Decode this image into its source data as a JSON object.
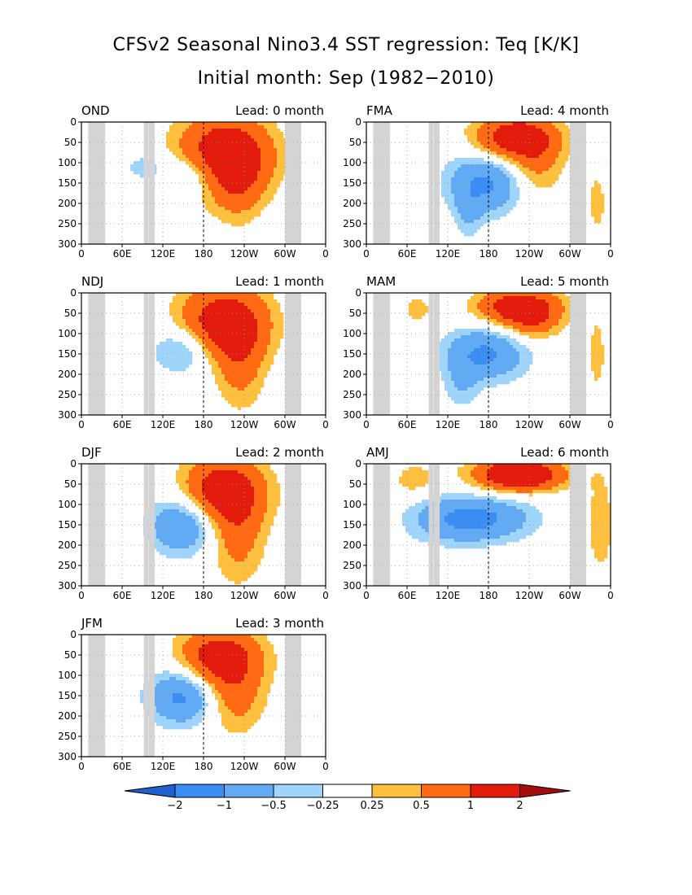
{
  "title": "CFSv2 Seasonal Nino3.4 SST regression: Teq [K/K]",
  "subtitle": "Initial month: Sep (1982−2010)",
  "chart_data": [
    {
      "type": "heatmap",
      "season": "OND",
      "lead": "Lead: 0 month",
      "x_ticks": [
        "0",
        "60E",
        "120E",
        "180",
        "120W",
        "60W",
        "0"
      ],
      "y_ticks": [
        "0",
        "50",
        "100",
        "150",
        "200",
        "250",
        "300"
      ],
      "ylim": [
        300,
        0
      ],
      "blobs": [
        {
          "lon": 210,
          "dep": 80,
          "rl": 70,
          "rd": 95,
          "v": 1.5
        },
        {
          "lon": 230,
          "dep": 150,
          "rl": 40,
          "rd": 100,
          "v": 0.6
        },
        {
          "lon": 160,
          "dep": 130,
          "rl": 50,
          "rd": 55,
          "v": -0.65
        },
        {
          "lon": 90,
          "dep": 110,
          "rl": 25,
          "rd": 30,
          "v": -0.4
        }
      ]
    },
    {
      "type": "heatmap",
      "season": "NDJ",
      "lead": "Lead: 1 month",
      "x_ticks": [
        "0",
        "60E",
        "120E",
        "180",
        "120W",
        "60W",
        "0"
      ],
      "y_ticks": [
        "0",
        "50",
        "100",
        "150",
        "200",
        "250",
        "300"
      ],
      "ylim": [
        300,
        0
      ],
      "blobs": [
        {
          "lon": 210,
          "dep": 75,
          "rl": 65,
          "rd": 90,
          "v": 1.5
        },
        {
          "lon": 235,
          "dep": 180,
          "rl": 35,
          "rd": 110,
          "v": 0.6
        },
        {
          "lon": 150,
          "dep": 140,
          "rl": 45,
          "rd": 60,
          "v": -0.75
        }
      ]
    },
    {
      "type": "heatmap",
      "season": "DJF",
      "lead": "Lead: 2 month",
      "x_ticks": [
        "0",
        "60E",
        "120E",
        "180",
        "120W",
        "60W",
        "0"
      ],
      "y_ticks": [
        "0",
        "50",
        "100",
        "150",
        "200",
        "250",
        "300"
      ],
      "ylim": [
        300,
        0
      ],
      "blobs": [
        {
          "lon": 210,
          "dep": 70,
          "rl": 60,
          "rd": 85,
          "v": 1.5
        },
        {
          "lon": 230,
          "dep": 190,
          "rl": 40,
          "rd": 110,
          "v": 0.6
        },
        {
          "lon": 150,
          "dep": 150,
          "rl": 50,
          "rd": 70,
          "v": -1.1
        }
      ]
    },
    {
      "type": "heatmap",
      "season": "JFM",
      "lead": "Lead: 3 month",
      "x_ticks": [
        "0",
        "60E",
        "120E",
        "180",
        "120W",
        "60W",
        "0"
      ],
      "y_ticks": [
        "0",
        "50",
        "100",
        "150",
        "200",
        "250",
        "300"
      ],
      "ylim": [
        300,
        0
      ],
      "blobs": [
        {
          "lon": 205,
          "dep": 60,
          "rl": 60,
          "rd": 75,
          "v": 1.5
        },
        {
          "lon": 225,
          "dep": 170,
          "rl": 45,
          "rd": 80,
          "v": 0.6
        },
        {
          "lon": 150,
          "dep": 150,
          "rl": 50,
          "rd": 70,
          "v": -1.2
        }
      ]
    },
    {
      "type": "heatmap",
      "season": "FMA",
      "lead": "Lead: 4 month",
      "x_ticks": [
        "0",
        "60E",
        "120E",
        "180",
        "120W",
        "60W",
        "0"
      ],
      "y_ticks": [
        "0",
        "50",
        "100",
        "150",
        "200",
        "250",
        "300"
      ],
      "ylim": [
        300,
        0
      ],
      "blobs": [
        {
          "lon": 220,
          "dep": 40,
          "rl": 60,
          "rd": 55,
          "v": 1.5
        },
        {
          "lon": 250,
          "dep": 110,
          "rl": 40,
          "rd": 80,
          "v": 0.55
        },
        {
          "lon": 175,
          "dep": 150,
          "rl": 55,
          "rd": 75,
          "v": -1.1
        },
        {
          "lon": 150,
          "dep": 230,
          "rl": 20,
          "rd": 60,
          "v": -0.4
        },
        {
          "lon": 340,
          "dep": 200,
          "rl": 15,
          "rd": 90,
          "v": 0.35
        }
      ]
    },
    {
      "type": "heatmap",
      "season": "MAM",
      "lead": "Lead: 5 month",
      "x_ticks": [
        "0",
        "60E",
        "120E",
        "180",
        "120W",
        "60W",
        "0"
      ],
      "y_ticks": [
        "0",
        "50",
        "100",
        "150",
        "200",
        "250",
        "300"
      ],
      "ylim": [
        300,
        0
      ],
      "blobs": [
        {
          "lon": 225,
          "dep": 35,
          "rl": 60,
          "rd": 45,
          "v": 1.5
        },
        {
          "lon": 245,
          "dep": 80,
          "rl": 40,
          "rd": 45,
          "v": 0.55
        },
        {
          "lon": 175,
          "dep": 150,
          "rl": 60,
          "rd": 65,
          "v": -1.1
        },
        {
          "lon": 140,
          "dep": 230,
          "rl": 25,
          "rd": 60,
          "v": -0.4
        },
        {
          "lon": 75,
          "dep": 40,
          "rl": 25,
          "rd": 40,
          "v": 0.35
        },
        {
          "lon": 340,
          "dep": 150,
          "rl": 15,
          "rd": 110,
          "v": 0.35
        }
      ]
    },
    {
      "type": "heatmap",
      "season": "AMJ",
      "lead": "Lead: 6 month",
      "x_ticks": [
        "0",
        "60E",
        "120E",
        "180",
        "120W",
        "60W",
        "0"
      ],
      "y_ticks": [
        "0",
        "50",
        "100",
        "150",
        "200",
        "250",
        "300"
      ],
      "ylim": [
        300,
        0
      ],
      "blobs": [
        {
          "lon": 225,
          "dep": 25,
          "rl": 55,
          "rd": 40,
          "v": 1.5
        },
        {
          "lon": 225,
          "dep": 30,
          "rl": 95,
          "rd": 40,
          "v": 0.45
        },
        {
          "lon": 170,
          "dep": 135,
          "rl": 75,
          "rd": 55,
          "v": -1.05
        },
        {
          "lon": 110,
          "dep": 140,
          "rl": 60,
          "rd": 60,
          "v": -0.4
        },
        {
          "lon": 70,
          "dep": 40,
          "rl": 30,
          "rd": 40,
          "v": 0.4
        },
        {
          "lon": 345,
          "dep": 150,
          "rl": 18,
          "rd": 110,
          "v": 0.5
        }
      ]
    }
  ],
  "colorbar": {
    "labels": [
      "−2",
      "−1",
      "−0.5",
      "−0.25",
      "0.25",
      "0.5",
      "1",
      "2"
    ],
    "bounds": [
      -2,
      -1,
      -0.5,
      -0.25,
      0.25,
      0.5,
      1,
      2
    ],
    "colors": [
      "#1e60cf",
      "#3a8df2",
      "#63aaf5",
      "#9fd4fb",
      "#ffffff",
      "#ffc040",
      "#ff6a13",
      "#e31b0c",
      "#a50c0c"
    ],
    "land_color": "#d4d4d4"
  }
}
